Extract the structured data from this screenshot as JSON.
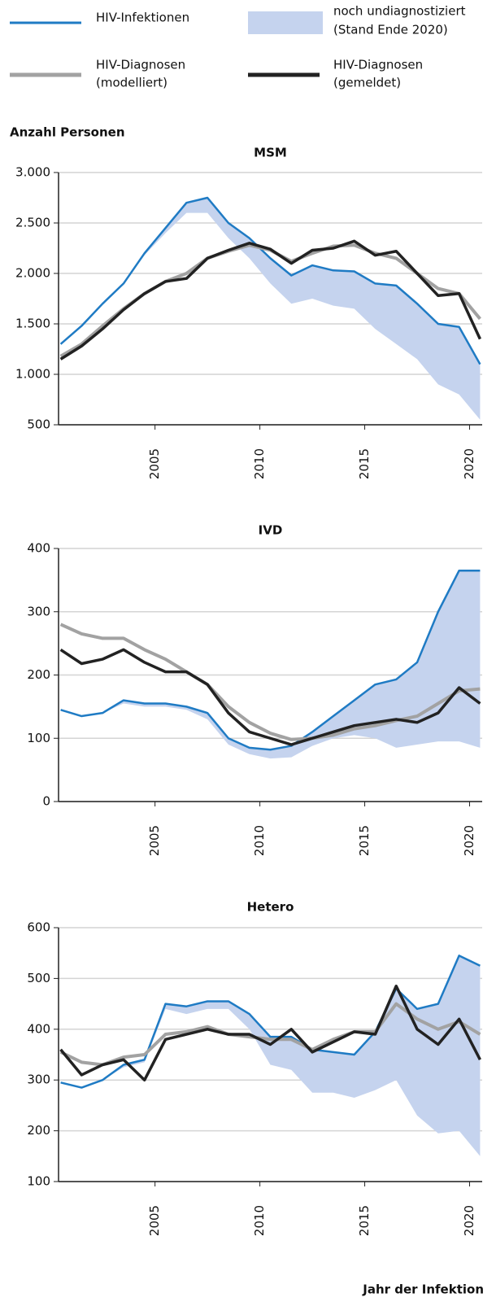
{
  "y_axis_label": "Anzahl Personen",
  "x_axis_label": "Jahr der Infektion",
  "chart_data": [
    {
      "type": "line",
      "title": "MSM",
      "x": [
        2000.5,
        2001.5,
        2002.5,
        2003.5,
        2004.5,
        2005.5,
        2006.5,
        2007.5,
        2008.5,
        2009.5,
        2010.5,
        2011.5,
        2012.5,
        2013.5,
        2014.5,
        2015.5,
        2016.5,
        2017.5,
        2018.5,
        2019.5,
        2020.5
      ],
      "xlim": [
        2000.4,
        2020.6
      ],
      "xticks": [
        2005,
        2010,
        2015,
        2020
      ],
      "ylim": [
        500,
        3000
      ],
      "yticks": [
        500,
        {
          "value": 1000,
          "label": "1.000"
        },
        {
          "value": 1500,
          "label": "1.500"
        },
        {
          "value": 2000,
          "label": "2.000"
        },
        {
          "value": 2500,
          "label": "2.500"
        },
        {
          "value": 3000,
          "label": "3.000"
        }
      ],
      "grid": true,
      "series": [
        {
          "name": "HIV-Infektionen",
          "color": "#1f7bc4",
          "values": [
            1300,
            1480,
            1700,
            1900,
            2200,
            2450,
            2700,
            2750,
            2500,
            2350,
            2150,
            1980,
            2080,
            2030,
            2020,
            1900,
            1880,
            1700,
            1500,
            1470,
            1100
          ]
        },
        {
          "name": [
            "noch undiagnostiziert",
            "(Stand Ende 2020)"
          ],
          "color": "#c5d3ee",
          "kind": "band",
          "low": [
            1300,
            1480,
            1700,
            1900,
            2180,
            2400,
            2600,
            2600,
            2350,
            2150,
            1900,
            1700,
            1750,
            1680,
            1650,
            1450,
            1300,
            1150,
            900,
            800,
            550
          ],
          "high": [
            1300,
            1480,
            1700,
            1900,
            2200,
            2450,
            2700,
            2750,
            2500,
            2350,
            2150,
            1980,
            2080,
            2030,
            2020,
            1900,
            1880,
            1700,
            1500,
            1470,
            1100
          ]
        },
        {
          "name": [
            "HIV-Diagnosen",
            "(modelliert)"
          ],
          "color": "#a2a2a2",
          "values": [
            1180,
            1300,
            1480,
            1650,
            1800,
            1920,
            2000,
            2150,
            2220,
            2280,
            2230,
            2120,
            2200,
            2270,
            2280,
            2200,
            2150,
            2000,
            1850,
            1800,
            1550
          ]
        },
        {
          "name": [
            "HIV-Diagnosen",
            "(gemeldet)"
          ],
          "color": "#222222",
          "values": [
            1150,
            1280,
            1450,
            1640,
            1800,
            1920,
            1950,
            2150,
            2230,
            2300,
            2240,
            2100,
            2230,
            2250,
            2320,
            2180,
            2220,
            2000,
            1780,
            1800,
            1350
          ]
        }
      ]
    },
    {
      "type": "line",
      "title": "IVD",
      "x": [
        2000.5,
        2001.5,
        2002.5,
        2003.5,
        2004.5,
        2005.5,
        2006.5,
        2007.5,
        2008.5,
        2009.5,
        2010.5,
        2011.5,
        2012.5,
        2013.5,
        2014.5,
        2015.5,
        2016.5,
        2017.5,
        2018.5,
        2019.5,
        2020.5
      ],
      "xlim": [
        2000.4,
        2020.6
      ],
      "xticks": [
        2005,
        2010,
        2015,
        2020
      ],
      "ylim": [
        0,
        400
      ],
      "yticks": [
        0,
        100,
        200,
        300,
        400
      ],
      "grid": true,
      "series": [
        {
          "name": "HIV-Infektionen",
          "color": "#1f7bc4",
          "values": [
            145,
            135,
            140,
            160,
            155,
            155,
            150,
            140,
            100,
            85,
            82,
            88,
            110,
            135,
            160,
            185,
            193,
            220,
            300,
            365,
            365
          ]
        },
        {
          "name": [
            "noch undiagnostiziert",
            "(Stand Ende 2020)"
          ],
          "color": "#c5d3ee",
          "kind": "band",
          "low": [
            145,
            135,
            140,
            155,
            150,
            150,
            145,
            130,
            90,
            75,
            68,
            70,
            88,
            100,
            105,
            100,
            85,
            90,
            95,
            95,
            85
          ],
          "high": [
            145,
            135,
            140,
            160,
            155,
            155,
            150,
            140,
            100,
            85,
            82,
            88,
            110,
            135,
            160,
            185,
            193,
            220,
            300,
            365,
            365
          ]
        },
        {
          "name": [
            "HIV-Diagnosen",
            "(modelliert)"
          ],
          "color": "#a2a2a2",
          "values": [
            280,
            265,
            258,
            258,
            240,
            225,
            205,
            185,
            150,
            125,
            108,
            98,
            100,
            105,
            115,
            120,
            128,
            135,
            155,
            175,
            178
          ]
        },
        {
          "name": [
            "HIV-Diagnosen",
            "(gemeldet)"
          ],
          "color": "#222222",
          "values": [
            240,
            218,
            225,
            240,
            220,
            205,
            205,
            185,
            140,
            110,
            100,
            90,
            100,
            110,
            120,
            125,
            130,
            125,
            140,
            180,
            155
          ]
        }
      ]
    },
    {
      "type": "line",
      "title": "Hetero",
      "x": [
        2000.5,
        2001.5,
        2002.5,
        2003.5,
        2004.5,
        2005.5,
        2006.5,
        2007.5,
        2008.5,
        2009.5,
        2010.5,
        2011.5,
        2012.5,
        2013.5,
        2014.5,
        2015.5,
        2016.5,
        2017.5,
        2018.5,
        2019.5,
        2020.5
      ],
      "xlim": [
        2000.4,
        2020.6
      ],
      "xticks": [
        2005,
        2010,
        2015,
        2020
      ],
      "ylim": [
        100,
        600
      ],
      "yticks": [
        100,
        200,
        300,
        400,
        500,
        600
      ],
      "grid": true,
      "series": [
        {
          "name": "HIV-Infektionen",
          "color": "#1f7bc4",
          "values": [
            295,
            285,
            300,
            330,
            340,
            450,
            445,
            455,
            455,
            430,
            385,
            385,
            360,
            355,
            350,
            395,
            480,
            440,
            450,
            545,
            525
          ]
        },
        {
          "name": [
            "noch undiagnostiziert",
            "(Stand Ende 2020)"
          ],
          "color": "#c5d3ee",
          "kind": "band",
          "low": [
            295,
            285,
            300,
            325,
            335,
            440,
            430,
            440,
            440,
            400,
            330,
            320,
            275,
            275,
            265,
            280,
            300,
            230,
            195,
            200,
            150
          ],
          "high": [
            295,
            285,
            300,
            330,
            340,
            450,
            445,
            455,
            455,
            430,
            385,
            385,
            360,
            355,
            350,
            395,
            480,
            440,
            450,
            545,
            525
          ]
        },
        {
          "name": [
            "HIV-Diagnosen",
            "(modelliert)"
          ],
          "color": "#a2a2a2",
          "values": [
            355,
            335,
            330,
            345,
            350,
            390,
            395,
            405,
            390,
            385,
            380,
            380,
            360,
            380,
            395,
            395,
            450,
            420,
            400,
            415,
            390
          ]
        },
        {
          "name": [
            "HIV-Diagnosen",
            "(gemeldet)"
          ],
          "color": "#222222",
          "values": [
            360,
            310,
            330,
            340,
            300,
            380,
            390,
            400,
            390,
            390,
            370,
            400,
            355,
            375,
            395,
            390,
            485,
            400,
            370,
            420,
            340
          ]
        }
      ]
    }
  ]
}
